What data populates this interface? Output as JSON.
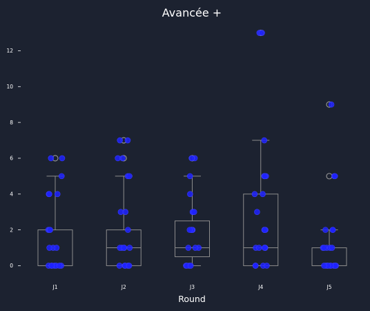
{
  "chart_data": {
    "type": "box",
    "title": "Avancée +",
    "xlabel": "Round",
    "ylabel": "",
    "ylim": [
      -0.6,
      13.6
    ],
    "yticks": [
      0,
      2,
      4,
      6,
      8,
      10,
      12
    ],
    "categories": [
      "J1",
      "J2",
      "J3",
      "J4",
      "J5"
    ],
    "grid": false,
    "colors": {
      "background": "#1c2230",
      "box": "#8c8c8c",
      "points": "#1f22ff",
      "outlier": "#9a9a9a",
      "text": "#ffffff"
    },
    "boxes": [
      {
        "category": "J1",
        "q1": 0,
        "median": 0,
        "q3": 2,
        "whisker_low": 0,
        "whisker_high": 5,
        "outliers": [
          6
        ]
      },
      {
        "category": "J2",
        "q1": 0,
        "median": 1,
        "q3": 2,
        "whisker_low": 0,
        "whisker_high": 5,
        "outliers": [
          6,
          7
        ]
      },
      {
        "category": "J3",
        "q1": 0.5,
        "median": 1,
        "q3": 2.5,
        "whisker_low": 0,
        "whisker_high": 5,
        "outliers": [
          6
        ]
      },
      {
        "category": "J4",
        "q1": 0,
        "median": 1,
        "q3": 4,
        "whisker_low": 0,
        "whisker_high": 7,
        "outliers": [
          13
        ]
      },
      {
        "category": "J5",
        "q1": 0,
        "median": 0,
        "q3": 1,
        "whisker_low": 0,
        "whisker_high": 2,
        "outliers": [
          5,
          9
        ]
      }
    ],
    "points": [
      {
        "category": "J1",
        "values": [
          0,
          0,
          0,
          0,
          0,
          0,
          0,
          1,
          1,
          1,
          2,
          2,
          2,
          4,
          4,
          4,
          5,
          6,
          6
        ]
      },
      {
        "category": "J2",
        "values": [
          0,
          0,
          0,
          0,
          0,
          1,
          1,
          1,
          1,
          1,
          2,
          3,
          3,
          5,
          5,
          6,
          6,
          7,
          7
        ]
      },
      {
        "category": "J3",
        "values": [
          0,
          0,
          0,
          0,
          1,
          1,
          1,
          2,
          2,
          2,
          2,
          2,
          2,
          3,
          3,
          3,
          4,
          5,
          6,
          6
        ]
      },
      {
        "category": "J4",
        "values": [
          0,
          0,
          0,
          0,
          1,
          1,
          1,
          1,
          1,
          2,
          2,
          2,
          3,
          4,
          4,
          5,
          5,
          5,
          5,
          7,
          13,
          13
        ]
      },
      {
        "category": "J5",
        "values": [
          0,
          0,
          0,
          0,
          0,
          0,
          0,
          0,
          0,
          1,
          1,
          1,
          1,
          1,
          2,
          2,
          2,
          5,
          5,
          9
        ]
      }
    ]
  }
}
